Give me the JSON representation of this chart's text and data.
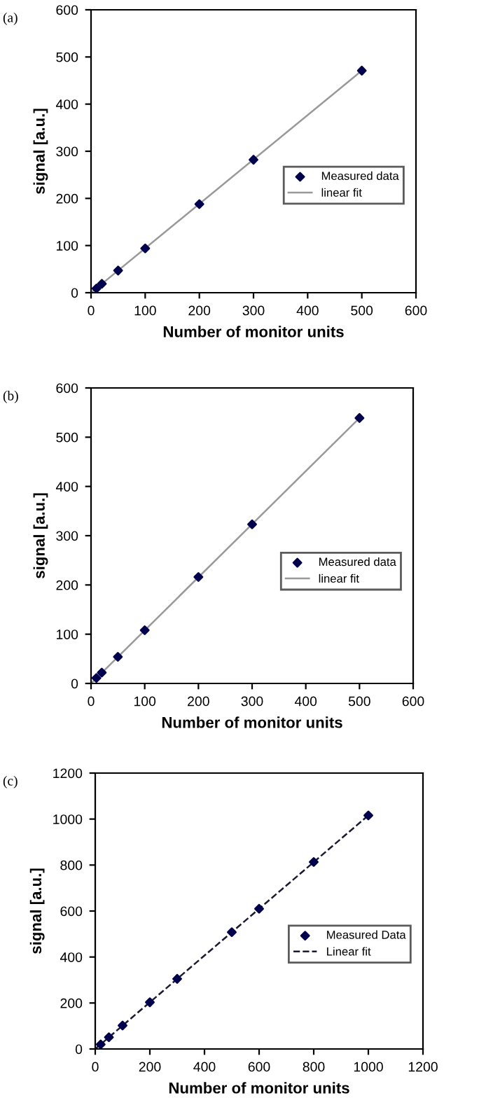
{
  "chart_data": [
    {
      "type": "scatter",
      "title": "(a)",
      "xlabel": "Number of monitor units",
      "ylabel": "signal [a.u.]",
      "xlim": [
        0,
        600
      ],
      "ylim": [
        0,
        600
      ],
      "xticks": [
        0,
        100,
        200,
        300,
        400,
        500,
        600
      ],
      "yticks": [
        0,
        100,
        200,
        300,
        400,
        500,
        600
      ],
      "legend": "right",
      "grid": false,
      "series": [
        {
          "name": "Measured data",
          "marker": "diamond",
          "color": "#00004d",
          "x": [
            10,
            20,
            50,
            100,
            200,
            300,
            500
          ],
          "values": [
            9,
            19,
            47,
            94,
            188,
            282,
            471
          ]
        },
        {
          "name": "linear fit",
          "type": "line",
          "marker": "none",
          "line_style": "solid",
          "color": "#999999",
          "x": [
            0,
            500
          ],
          "values": [
            0,
            471
          ]
        }
      ]
    },
    {
      "type": "scatter",
      "title": "(b)",
      "xlabel": "Number of monitor units",
      "ylabel": "signal [a.u.]",
      "xlim": [
        0,
        600
      ],
      "ylim": [
        0,
        600
      ],
      "xticks": [
        0,
        100,
        200,
        300,
        400,
        500,
        600
      ],
      "yticks": [
        0,
        100,
        200,
        300,
        400,
        500,
        600
      ],
      "legend": "right",
      "grid": false,
      "series": [
        {
          "name": "Measured data",
          "marker": "diamond",
          "color": "#00004d",
          "x": [
            10,
            20,
            50,
            100,
            200,
            300,
            500
          ],
          "values": [
            11,
            22,
            54,
            108,
            216,
            323,
            539
          ]
        },
        {
          "name": "linear fit",
          "type": "line",
          "marker": "none",
          "line_style": "solid",
          "color": "#999999",
          "x": [
            0,
            500
          ],
          "values": [
            0,
            539
          ]
        }
      ]
    },
    {
      "type": "scatter",
      "title": "(c)",
      "xlabel": "Number of monitor units",
      "ylabel": "signal [a.u.]",
      "xlim": [
        0,
        1200
      ],
      "ylim": [
        0,
        1200
      ],
      "xticks": [
        0,
        200,
        400,
        600,
        800,
        1000,
        1200
      ],
      "yticks": [
        0,
        200,
        400,
        600,
        800,
        1000,
        1200
      ],
      "legend": "right",
      "grid": false,
      "series": [
        {
          "name": "Measured Data",
          "marker": "diamond",
          "color": "#00004d",
          "x": [
            20,
            50,
            100,
            200,
            300,
            500,
            600,
            800,
            1000
          ],
          "values": [
            20,
            51,
            102,
            203,
            305,
            508,
            610,
            813,
            1016
          ]
        },
        {
          "name": "Linear fit",
          "type": "line",
          "marker": "none",
          "line_style": "dashed",
          "color": "#1a1a33",
          "x": [
            0,
            1000
          ],
          "values": [
            0,
            1016
          ]
        }
      ]
    }
  ]
}
